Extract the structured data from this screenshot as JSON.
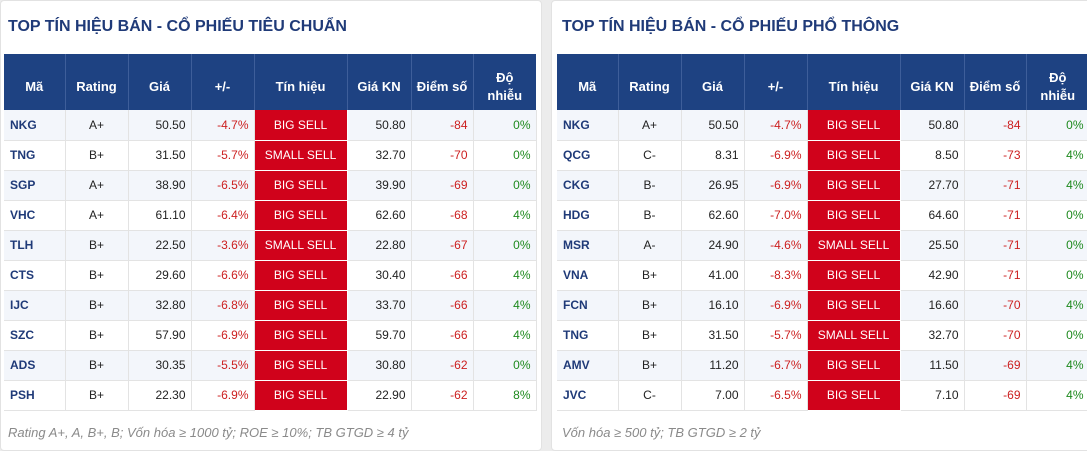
{
  "left": {
    "title": "TOP TÍN HIỆU BÁN - CỔ PHIẾU TIÊU CHUẨN",
    "headers": [
      "Mã",
      "Rating",
      "Giá",
      "+/-",
      "Tín hiệu",
      "Giá KN",
      "Điểm số",
      "Độ",
      "nhiễu"
    ],
    "rows": [
      {
        "code": "NKG",
        "rating": "A+",
        "price": "50.50",
        "change": "-4.7%",
        "signal": "BIG SELL",
        "resist": "50.80",
        "score": "-84",
        "noise": "0%"
      },
      {
        "code": "TNG",
        "rating": "B+",
        "price": "31.50",
        "change": "-5.7%",
        "signal": "SMALL SELL",
        "resist": "32.70",
        "score": "-70",
        "noise": "0%"
      },
      {
        "code": "SGP",
        "rating": "A+",
        "price": "38.90",
        "change": "-6.5%",
        "signal": "BIG SELL",
        "resist": "39.90",
        "score": "-69",
        "noise": "0%"
      },
      {
        "code": "VHC",
        "rating": "A+",
        "price": "61.10",
        "change": "-6.4%",
        "signal": "BIG SELL",
        "resist": "62.60",
        "score": "-68",
        "noise": "4%"
      },
      {
        "code": "TLH",
        "rating": "B+",
        "price": "22.50",
        "change": "-3.6%",
        "signal": "SMALL SELL",
        "resist": "22.80",
        "score": "-67",
        "noise": "0%"
      },
      {
        "code": "CTS",
        "rating": "B+",
        "price": "29.60",
        "change": "-6.6%",
        "signal": "BIG SELL",
        "resist": "30.40",
        "score": "-66",
        "noise": "4%"
      },
      {
        "code": "IJC",
        "rating": "B+",
        "price": "32.80",
        "change": "-6.8%",
        "signal": "BIG SELL",
        "resist": "33.70",
        "score": "-66",
        "noise": "4%"
      },
      {
        "code": "SZC",
        "rating": "B+",
        "price": "57.90",
        "change": "-6.9%",
        "signal": "BIG SELL",
        "resist": "59.70",
        "score": "-66",
        "noise": "4%"
      },
      {
        "code": "ADS",
        "rating": "B+",
        "price": "30.35",
        "change": "-5.5%",
        "signal": "BIG SELL",
        "resist": "30.80",
        "score": "-62",
        "noise": "0%"
      },
      {
        "code": "PSH",
        "rating": "B+",
        "price": "22.30",
        "change": "-6.9%",
        "signal": "BIG SELL",
        "resist": "22.90",
        "score": "-62",
        "noise": "8%"
      }
    ],
    "footnote": "Rating A+, A, B+, B; Vốn hóa ≥ 1000 tỷ; ROE ≥ 10%; TB GTGD ≥ 4 tỷ"
  },
  "right": {
    "title": "TOP TÍN HIỆU BÁN - CỔ PHIẾU PHỔ THÔNG",
    "headers": [
      "Mã",
      "Rating",
      "Giá",
      "+/-",
      "Tín hiệu",
      "Giá KN",
      "Điểm số",
      "Độ",
      "nhiễu"
    ],
    "rows": [
      {
        "code": "NKG",
        "rating": "A+",
        "price": "50.50",
        "change": "-4.7%",
        "signal": "BIG SELL",
        "resist": "50.80",
        "score": "-84",
        "noise": "0%"
      },
      {
        "code": "QCG",
        "rating": "C-",
        "price": "8.31",
        "change": "-6.9%",
        "signal": "BIG SELL",
        "resist": "8.50",
        "score": "-73",
        "noise": "4%"
      },
      {
        "code": "CKG",
        "rating": "B-",
        "price": "26.95",
        "change": "-6.9%",
        "signal": "BIG SELL",
        "resist": "27.70",
        "score": "-71",
        "noise": "4%"
      },
      {
        "code": "HDG",
        "rating": "B-",
        "price": "62.60",
        "change": "-7.0%",
        "signal": "BIG SELL",
        "resist": "64.60",
        "score": "-71",
        "noise": "0%"
      },
      {
        "code": "MSR",
        "rating": "A-",
        "price": "24.90",
        "change": "-4.6%",
        "signal": "SMALL SELL",
        "resist": "25.50",
        "score": "-71",
        "noise": "0%"
      },
      {
        "code": "VNA",
        "rating": "B+",
        "price": "41.00",
        "change": "-8.3%",
        "signal": "BIG SELL",
        "resist": "42.90",
        "score": "-71",
        "noise": "0%"
      },
      {
        "code": "FCN",
        "rating": "B+",
        "price": "16.10",
        "change": "-6.9%",
        "signal": "BIG SELL",
        "resist": "16.60",
        "score": "-70",
        "noise": "4%"
      },
      {
        "code": "TNG",
        "rating": "B+",
        "price": "31.50",
        "change": "-5.7%",
        "signal": "SMALL SELL",
        "resist": "32.70",
        "score": "-70",
        "noise": "0%"
      },
      {
        "code": "AMV",
        "rating": "B+",
        "price": "11.20",
        "change": "-6.7%",
        "signal": "BIG SELL",
        "resist": "11.50",
        "score": "-69",
        "noise": "4%"
      },
      {
        "code": "JVC",
        "rating": "C-",
        "price": "7.00",
        "change": "-6.5%",
        "signal": "BIG SELL",
        "resist": "7.10",
        "score": "-69",
        "noise": "4%"
      }
    ],
    "footnote": "Vốn hóa ≥ 500 tỷ; TB GTGD ≥ 2 tỷ"
  },
  "colors": {
    "header_bg": "#1e4282",
    "title": "#1f3a78",
    "signal_bg": "#d0021b",
    "negative": "#cc1f1f",
    "positive": "#1e8a1e"
  }
}
